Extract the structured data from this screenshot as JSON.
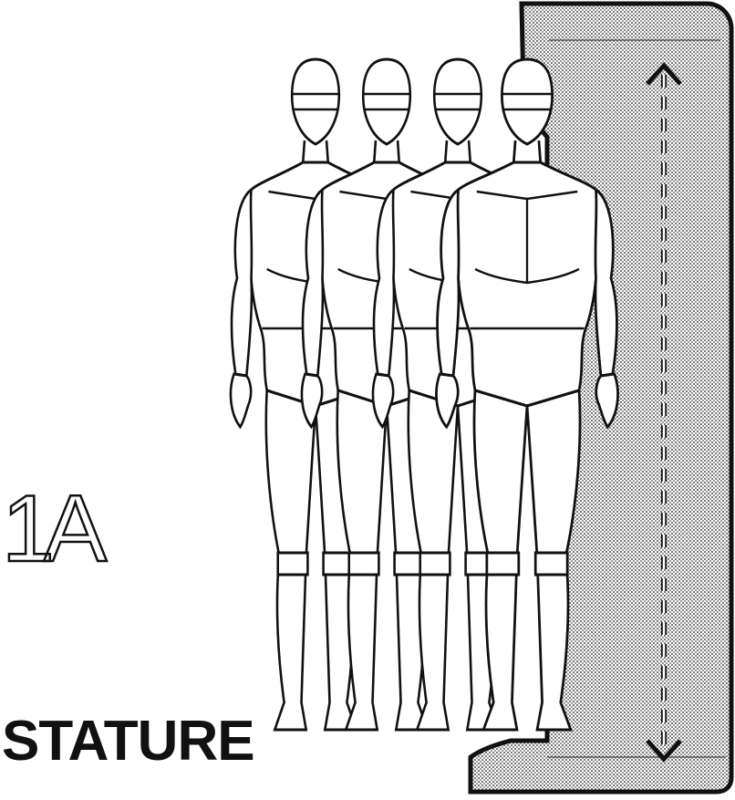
{
  "figure": {
    "label": "1A",
    "measurement_title": "STATURE"
  },
  "illustration": {
    "figure_count": 4,
    "subject": "standing-figures-against-wall",
    "measurement_indicator": "dashed-vertical-double-arrow",
    "colors": {
      "ink": "#111111",
      "paper": "#ffffff",
      "wall_stipple": "#b9b9b9"
    }
  }
}
